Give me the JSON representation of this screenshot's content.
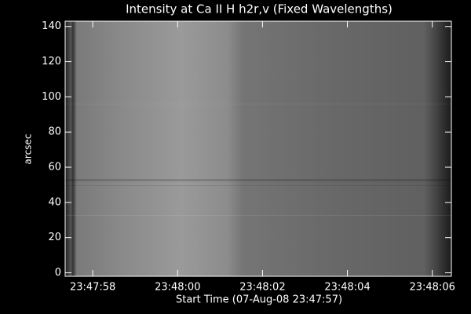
{
  "chart_data": {
    "type": "image",
    "title": "Intensity at Ca II H h2r,v (Fixed Wavelengths)",
    "x_label": "Start Time (07-Aug-08 23:47:57)",
    "y_label": "arcsec",
    "xlim": [
      0.35,
      9.45
    ],
    "xticks": [
      {
        "value": 1,
        "label": "23:47:58"
      },
      {
        "value": 3,
        "label": "23:48:00"
      },
      {
        "value": 5,
        "label": "23:48:02"
      },
      {
        "value": 7,
        "label": "23:48:04"
      },
      {
        "value": 9,
        "label": "23:48:06"
      }
    ],
    "ylim": [
      -2,
      143
    ],
    "yticks": [
      0,
      20,
      40,
      60,
      80,
      100,
      120,
      140
    ]
  }
}
